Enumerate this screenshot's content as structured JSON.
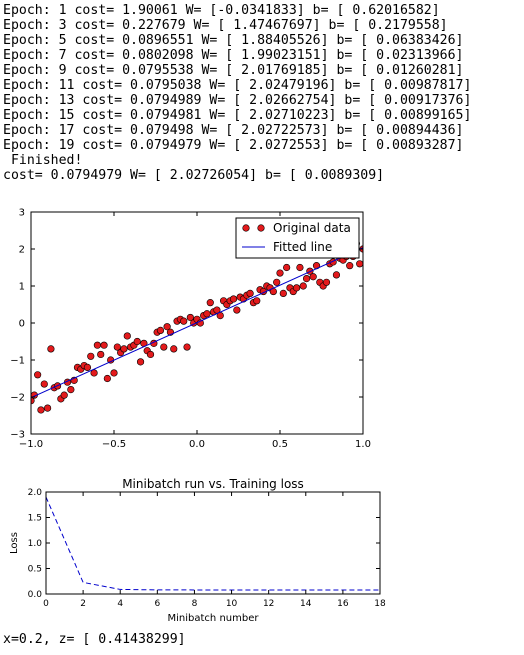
{
  "console": {
    "lines": [
      "Epoch: 1 cost= 1.90061 W= [-0.0341833] b= [ 0.62016582]",
      "Epoch: 3 cost= 0.227679 W= [ 1.47467697] b= [ 0.2179558]",
      "Epoch: 5 cost= 0.0896551 W= [ 1.88405526] b= [ 0.06383426]",
      "Epoch: 7 cost= 0.0802098 W= [ 1.99023151] b= [ 0.02313966]",
      "Epoch: 9 cost= 0.0795538 W= [ 2.01769185] b= [ 0.01260281]",
      "Epoch: 11 cost= 0.0795038 W= [ 2.02479196] b= [ 0.00987817]",
      "Epoch: 13 cost= 0.0794989 W= [ 2.02662754] b= [ 0.00917376]",
      "Epoch: 15 cost= 0.0794981 W= [ 2.02710223] b= [ 0.00899165]",
      "Epoch: 17 cost= 0.079498 W= [ 2.02722573] b= [ 0.00894436]",
      "Epoch: 19 cost= 0.0794979 W= [ 2.0272553] b= [ 0.00893287]",
      " Finished!",
      "cost= 0.0794979 W= [ 2.02726054] b= [ 0.0089309]"
    ],
    "result_line": "x=0.2, z= [ 0.41438299]"
  },
  "colors": {
    "marker_fill": "#e31a1c",
    "marker_edge": "#000000",
    "line": "#0000cc",
    "axes": "#000000"
  },
  "chart_data": [
    {
      "type": "scatter",
      "title": "",
      "xlabel": "",
      "ylabel": "",
      "xlim": [
        -1.0,
        1.0
      ],
      "ylim": [
        -3,
        3
      ],
      "xticks": [
        -1.0,
        -0.5,
        0.0,
        0.5,
        1.0
      ],
      "xtick_labels": [
        "−1.0",
        "−0.5",
        "0.0",
        "0.5",
        "1.0"
      ],
      "yticks": [
        -3,
        -2,
        -1,
        0,
        1,
        2,
        3
      ],
      "ytick_labels": [
        "−3",
        "−2",
        "−1",
        "0",
        "1",
        "2",
        "3"
      ],
      "grid": false,
      "legend": {
        "position": "top-right",
        "entries": [
          "Original data",
          "Fitted line"
        ]
      },
      "series": [
        {
          "name": "Original data",
          "marker": "o",
          "points": [
            [
              -1.0,
              -2.1
            ],
            [
              -0.98,
              -1.95
            ],
            [
              -0.96,
              -1.4
            ],
            [
              -0.94,
              -2.35
            ],
            [
              -0.92,
              -1.65
            ],
            [
              -0.9,
              -2.3
            ],
            [
              -0.88,
              -0.7
            ],
            [
              -0.86,
              -1.75
            ],
            [
              -0.84,
              -1.7
            ],
            [
              -0.82,
              -2.05
            ],
            [
              -0.8,
              -1.95
            ],
            [
              -0.78,
              -1.6
            ],
            [
              -0.76,
              -1.8
            ],
            [
              -0.74,
              -1.55
            ],
            [
              -0.72,
              -1.2
            ],
            [
              -0.7,
              -1.25
            ],
            [
              -0.68,
              -1.15
            ],
            [
              -0.66,
              -1.2
            ],
            [
              -0.64,
              -0.9
            ],
            [
              -0.62,
              -1.35
            ],
            [
              -0.6,
              -0.6
            ],
            [
              -0.58,
              -0.85
            ],
            [
              -0.56,
              -0.6
            ],
            [
              -0.54,
              -1.5
            ],
            [
              -0.52,
              -1.0
            ],
            [
              -0.5,
              -1.35
            ],
            [
              -0.48,
              -0.65
            ],
            [
              -0.46,
              -0.8
            ],
            [
              -0.44,
              -0.7
            ],
            [
              -0.42,
              -0.35
            ],
            [
              -0.4,
              -0.65
            ],
            [
              -0.38,
              -0.6
            ],
            [
              -0.36,
              -0.5
            ],
            [
              -0.34,
              -1.05
            ],
            [
              -0.32,
              -0.55
            ],
            [
              -0.3,
              -0.75
            ],
            [
              -0.28,
              -0.85
            ],
            [
              -0.26,
              -0.55
            ],
            [
              -0.24,
              -0.25
            ],
            [
              -0.22,
              -0.2
            ],
            [
              -0.2,
              -0.65
            ],
            [
              -0.18,
              -0.1
            ],
            [
              -0.16,
              -0.25
            ],
            [
              -0.14,
              -0.7
            ],
            [
              -0.12,
              0.05
            ],
            [
              -0.1,
              0.1
            ],
            [
              -0.08,
              0.05
            ],
            [
              -0.06,
              -0.65
            ],
            [
              -0.04,
              0.15
            ],
            [
              -0.02,
              0.0
            ],
            [
              0.0,
              0.1
            ],
            [
              0.02,
              0.0
            ],
            [
              0.04,
              0.2
            ],
            [
              0.06,
              0.25
            ],
            [
              0.08,
              0.55
            ],
            [
              0.1,
              0.3
            ],
            [
              0.12,
              0.35
            ],
            [
              0.14,
              0.2
            ],
            [
              0.16,
              0.6
            ],
            [
              0.18,
              0.5
            ],
            [
              0.2,
              0.6
            ],
            [
              0.22,
              0.65
            ],
            [
              0.24,
              0.35
            ],
            [
              0.26,
              0.7
            ],
            [
              0.28,
              0.65
            ],
            [
              0.3,
              0.75
            ],
            [
              0.32,
              0.8
            ],
            [
              0.34,
              0.55
            ],
            [
              0.36,
              0.6
            ],
            [
              0.38,
              0.9
            ],
            [
              0.4,
              0.85
            ],
            [
              0.42,
              1.0
            ],
            [
              0.44,
              0.95
            ],
            [
              0.46,
              0.85
            ],
            [
              0.48,
              1.1
            ],
            [
              0.5,
              1.35
            ],
            [
              0.52,
              0.8
            ],
            [
              0.54,
              1.5
            ],
            [
              0.56,
              0.95
            ],
            [
              0.58,
              0.85
            ],
            [
              0.6,
              0.95
            ],
            [
              0.62,
              1.5
            ],
            [
              0.64,
              1.0
            ],
            [
              0.66,
              1.2
            ],
            [
              0.68,
              1.4
            ],
            [
              0.7,
              1.25
            ],
            [
              0.72,
              1.55
            ],
            [
              0.74,
              1.1
            ],
            [
              0.76,
              1.0
            ],
            [
              0.78,
              1.1
            ],
            [
              0.8,
              1.6
            ],
            [
              0.82,
              1.65
            ],
            [
              0.84,
              1.3
            ],
            [
              0.86,
              1.75
            ],
            [
              0.88,
              1.7
            ],
            [
              0.9,
              1.8
            ],
            [
              0.92,
              1.55
            ],
            [
              0.94,
              1.8
            ],
            [
              0.96,
              2.15
            ],
            [
              0.98,
              1.6
            ],
            [
              1.0,
              2.0
            ]
          ]
        },
        {
          "name": "Fitted line",
          "points": [
            [
              -1.0,
              -2.01833
            ],
            [
              1.0,
              2.03619
            ]
          ]
        }
      ]
    },
    {
      "type": "line",
      "title": "Minibatch run vs. Training loss",
      "xlabel": "Minibatch number",
      "ylabel": "Loss",
      "xlim": [
        0,
        18
      ],
      "ylim": [
        0.0,
        2.0
      ],
      "xticks": [
        0,
        2,
        4,
        6,
        8,
        10,
        12,
        14,
        16,
        18
      ],
      "xtick_labels": [
        "0",
        "2",
        "4",
        "6",
        "8",
        "10",
        "12",
        "14",
        "16",
        "18"
      ],
      "yticks": [
        0.0,
        0.5,
        1.0,
        1.5,
        2.0
      ],
      "ytick_labels": [
        "0.0",
        "0.5",
        "1.0",
        "1.5",
        "2.0"
      ],
      "grid": false,
      "legend": null,
      "series": [
        {
          "linestyle": "dashed",
          "x": [
            0,
            2,
            4,
            6,
            8,
            10,
            12,
            14,
            16,
            18
          ],
          "values": [
            1.90061,
            0.227679,
            0.0896551,
            0.0802098,
            0.0795538,
            0.0795038,
            0.0794989,
            0.0794981,
            0.079498,
            0.0794979
          ]
        }
      ]
    }
  ]
}
